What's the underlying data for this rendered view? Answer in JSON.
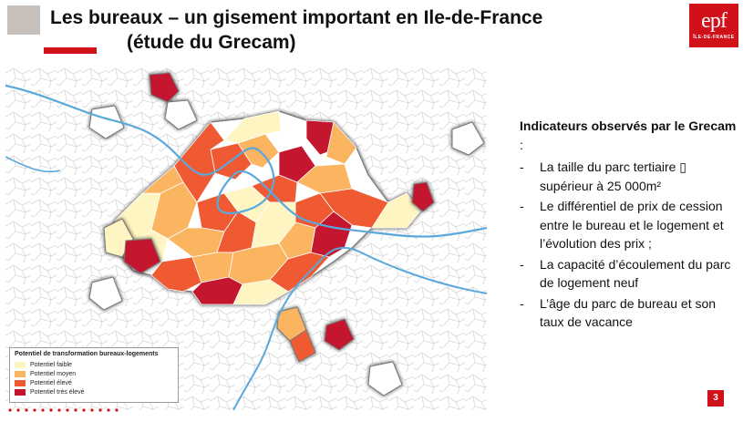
{
  "header": {
    "title_line1": "Les bureaux – un gisement important en Ile-de-France",
    "title_line2": "(étude du Grecam)"
  },
  "logo": {
    "brand": "epf",
    "sub": "ÎLE-DE-FRANCE"
  },
  "legend": {
    "title": "Potentiel de transformation bureaux-logements",
    "items": [
      {
        "label": "Potentiel faible",
        "color": "#fff5c2"
      },
      {
        "label": "Potentiel moyen",
        "color": "#fbb461"
      },
      {
        "label": "Potentiel élevé",
        "color": "#ef5a30"
      },
      {
        "label": "Potentiel très élevé",
        "color": "#c4122f"
      }
    ]
  },
  "panel": {
    "heading": "Indicateurs observés par le Grecam",
    "heading_suffix": " :",
    "bullets": [
      "La taille du parc tertiaire ▯ supérieur à 25 000m²",
      "Le différentiel de prix de cession entre le bureau et le logement et l’évolution des prix ;",
      "La capacité d’écoulement du parc de logement neuf",
      "L’âge du parc de bureau et son taux de vacance"
    ]
  },
  "page_number": "3",
  "colors": {
    "brand_red": "#d1111a",
    "river": "#5aa8dc",
    "commune_border": "#d8d8d8",
    "white_commune": "#ffffff"
  }
}
